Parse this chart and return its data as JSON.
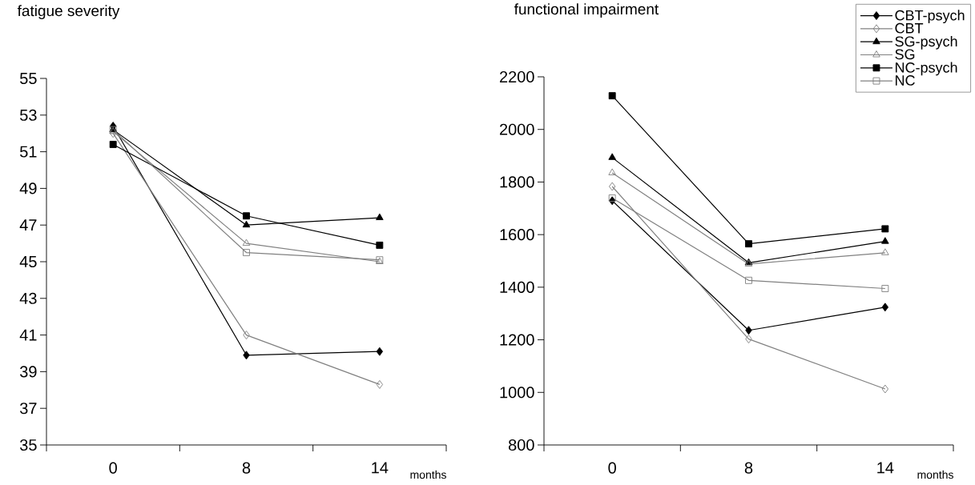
{
  "chart_data": [
    {
      "type": "line",
      "title": "fatigue severity",
      "xlabel": "months",
      "categories": [
        "0",
        "8",
        "14"
      ],
      "ylim": [
        35,
        55
      ],
      "yticks": [
        35,
        37,
        39,
        41,
        43,
        45,
        47,
        49,
        51,
        53,
        55
      ],
      "grid": false,
      "series": [
        {
          "color": "#000000",
          "marker": "diamond",
          "values": [
            52.4,
            39.9,
            40.1
          ]
        },
        {
          "color": "#808080",
          "marker": "diamond",
          "values": [
            52.0,
            41.0,
            38.3
          ]
        },
        {
          "color": "#000000",
          "marker": "triangle",
          "values": [
            52.2,
            47.0,
            47.4
          ]
        },
        {
          "color": "#808080",
          "marker": "triangle",
          "values": [
            52.1,
            46.0,
            45.0
          ]
        },
        {
          "color": "#000000",
          "marker": "square",
          "values": [
            51.4,
            47.5,
            45.9
          ]
        },
        {
          "color": "#808080",
          "marker": "square",
          "values": [
            52.2,
            45.5,
            45.1
          ]
        }
      ]
    },
    {
      "type": "line",
      "title": "functional impairment",
      "xlabel": "months",
      "categories": [
        "0",
        "8",
        "14"
      ],
      "ylim": [
        800,
        2200
      ],
      "yticks": [
        800,
        1000,
        1200,
        1400,
        1600,
        1800,
        2000,
        2200
      ],
      "grid": false,
      "legend": "top right",
      "series": [
        {
          "name": "CBT-psych",
          "color": "#000000",
          "marker": "diamond",
          "values": [
            1729,
            1236,
            1324
          ]
        },
        {
          "name": "CBT",
          "color": "#808080",
          "marker": "diamond",
          "values": [
            1783,
            1203,
            1013
          ]
        },
        {
          "name": "SG-psych",
          "color": "#000000",
          "marker": "triangle",
          "values": [
            1893,
            1493,
            1574
          ]
        },
        {
          "name": "SG",
          "color": "#808080",
          "marker": "triangle",
          "values": [
            1835,
            1488,
            1531
          ]
        },
        {
          "name": "NC-psych",
          "color": "#000000",
          "marker": "square",
          "values": [
            2128,
            1565,
            1622
          ]
        },
        {
          "name": "NC",
          "color": "#808080",
          "marker": "square",
          "values": [
            1739,
            1426,
            1395
          ]
        }
      ]
    }
  ]
}
